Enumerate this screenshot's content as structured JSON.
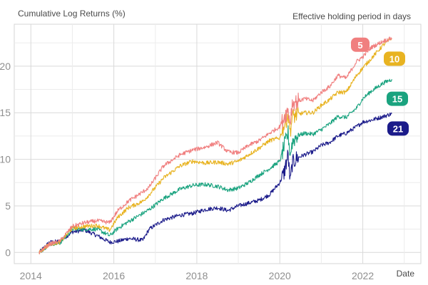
{
  "chart_data": {
    "type": "line",
    "title": "Cumulative Log Returns (%)",
    "legend_title": "Effective holding period in days",
    "xlabel": "Date",
    "ylabel": "Cumulative Log Returns (%)",
    "xlim": [
      2013.6,
      2023.4
    ],
    "ylim": [
      -1.2,
      24.5
    ],
    "x_ticks": [
      2014,
      2016,
      2018,
      2020,
      2022
    ],
    "x_tick_labels": [
      "2014",
      "2016",
      "2018",
      "2020",
      "2022"
    ],
    "y_ticks": [
      0,
      5,
      10,
      15,
      20
    ],
    "y_tick_labels": [
      "0",
      "5",
      "10",
      "15",
      "20"
    ],
    "grid": true,
    "legend_placement": "right, direct labels at line ends",
    "series": [
      {
        "name": "5",
        "color": "#f07f7f",
        "x": [
          2014.2,
          2014.45,
          2014.7,
          2015.0,
          2015.3,
          2015.6,
          2015.9,
          2016.1,
          2016.35,
          2016.7,
          2016.85,
          2017.2,
          2017.6,
          2017.9,
          2018.2,
          2018.5,
          2018.75,
          2019.0,
          2019.25,
          2019.5,
          2019.75,
          2020.0,
          2020.1,
          2020.2,
          2020.25,
          2020.3,
          2020.4,
          2020.6,
          2020.8,
          2021.0,
          2021.2,
          2021.4,
          2021.6,
          2021.85,
          2022.0,
          2022.2,
          2022.5,
          2022.7
        ],
        "values": [
          0.0,
          0.9,
          1.2,
          2.8,
          3.2,
          3.4,
          3.2,
          4.5,
          5.5,
          6.5,
          7.0,
          9.3,
          10.5,
          11.0,
          11.3,
          11.8,
          10.8,
          10.7,
          11.5,
          12.0,
          12.8,
          13.5,
          14.5,
          15.3,
          14.0,
          16.0,
          16.2,
          16.5,
          16.3,
          17.2,
          17.8,
          19.0,
          18.7,
          20.5,
          21.0,
          22.0,
          22.7,
          23.0
        ]
      },
      {
        "name": "10",
        "color": "#e8b321",
        "x": [
          2014.2,
          2014.45,
          2014.7,
          2015.0,
          2015.3,
          2015.6,
          2015.9,
          2016.1,
          2016.35,
          2016.7,
          2016.85,
          2017.2,
          2017.6,
          2017.9,
          2018.2,
          2018.5,
          2018.75,
          2019.0,
          2019.25,
          2019.5,
          2019.75,
          2020.0,
          2020.1,
          2020.2,
          2020.25,
          2020.3,
          2020.4,
          2020.6,
          2020.8,
          2021.0,
          2021.2,
          2021.4,
          2021.6,
          2021.85,
          2022.0,
          2022.2,
          2022.5,
          2022.7
        ],
        "values": [
          0.0,
          0.9,
          1.1,
          2.6,
          2.8,
          2.9,
          2.4,
          3.8,
          4.8,
          5.5,
          6.2,
          8.0,
          9.3,
          9.8,
          9.6,
          9.7,
          9.5,
          9.8,
          10.5,
          11.2,
          12.0,
          12.3,
          13.6,
          14.8,
          13.0,
          14.5,
          14.8,
          15.0,
          15.0,
          15.8,
          16.4,
          17.2,
          17.2,
          19.0,
          19.8,
          20.8,
          22.3,
          23.0
        ]
      },
      {
        "name": "15",
        "color": "#1aa37f",
        "x": [
          2014.2,
          2014.45,
          2014.7,
          2015.0,
          2015.3,
          2015.6,
          2015.9,
          2016.1,
          2016.35,
          2016.7,
          2016.85,
          2017.2,
          2017.6,
          2017.9,
          2018.2,
          2018.5,
          2018.75,
          2019.0,
          2019.25,
          2019.5,
          2019.75,
          2020.0,
          2020.1,
          2020.2,
          2020.25,
          2020.3,
          2020.4,
          2020.6,
          2020.8,
          2021.0,
          2021.2,
          2021.4,
          2021.6,
          2021.85,
          2022.0,
          2022.2,
          2022.5,
          2022.7
        ],
        "values": [
          0.0,
          0.9,
          1.0,
          2.5,
          2.5,
          2.5,
          1.8,
          2.6,
          3.3,
          4.2,
          4.6,
          5.8,
          6.8,
          7.2,
          7.3,
          7.1,
          6.7,
          6.9,
          7.5,
          8.3,
          9.0,
          9.8,
          11.3,
          12.8,
          10.5,
          11.8,
          12.5,
          12.8,
          12.7,
          13.2,
          13.8,
          14.6,
          14.5,
          15.5,
          16.5,
          17.3,
          18.2,
          18.6
        ]
      },
      {
        "name": "21",
        "color": "#1b1b8a",
        "x": [
          2014.2,
          2014.45,
          2014.7,
          2015.0,
          2015.3,
          2015.6,
          2015.9,
          2016.1,
          2016.35,
          2016.7,
          2016.85,
          2017.2,
          2017.6,
          2017.9,
          2018.2,
          2018.5,
          2018.75,
          2019.0,
          2019.25,
          2019.5,
          2019.75,
          2020.0,
          2020.1,
          2020.2,
          2020.25,
          2020.3,
          2020.4,
          2020.6,
          2020.8,
          2021.0,
          2021.2,
          2021.4,
          2021.6,
          2021.85,
          2022.0,
          2022.2,
          2022.5,
          2022.7
        ],
        "values": [
          0.0,
          1.1,
          1.2,
          2.2,
          2.4,
          1.8,
          1.1,
          1.2,
          1.5,
          1.3,
          2.5,
          3.5,
          4.0,
          4.2,
          4.6,
          4.8,
          4.5,
          5.0,
          5.3,
          5.6,
          6.2,
          7.5,
          8.5,
          10.5,
          7.5,
          9.5,
          10.1,
          10.5,
          10.8,
          11.5,
          11.8,
          12.5,
          12.8,
          13.5,
          14.0,
          14.2,
          14.6,
          14.9
        ]
      }
    ]
  }
}
